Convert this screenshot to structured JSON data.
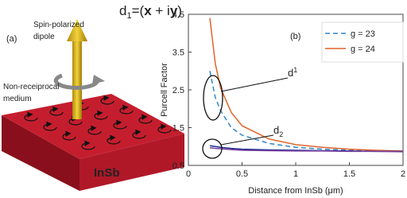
{
  "diagram": {
    "panel_label": "(a)",
    "dipole_formula": [
      "d",
      "1",
      "=(",
      "x",
      " + i",
      "y",
      ")"
    ],
    "dipole_label": [
      "Spin-polarized",
      "dipole"
    ],
    "medium_label": [
      "Non-receiprocal",
      "medium"
    ],
    "material": "InSb"
  },
  "chart_data": {
    "type": "line",
    "panel_label": "(b)",
    "xlabel": "Distance from InSb (μm)",
    "ylabel": "Purcell Factor",
    "x": [
      0.2,
      0.25,
      0.3,
      0.4,
      0.5,
      0.75,
      1,
      1.25,
      1.5,
      1.75,
      2
    ],
    "series": [
      {
        "name": "g = 23",
        "color": "#2f86c9",
        "dashed": true,
        "values": [
          3.0,
          2.3,
          1.95,
          1.5,
          1.3,
          1.08,
          0.98,
          0.93,
          0.9,
          0.88,
          0.87
        ]
      },
      {
        "name": "g = 24",
        "color": "#e0642a",
        "values": [
          4.4,
          3.2,
          2.55,
          1.9,
          1.55,
          1.2,
          1.05,
          0.98,
          0.93,
          0.9,
          0.88
        ]
      },
      {
        "color": "#1f2a8c",
        "values": [
          1.02,
          1.0,
          0.98,
          0.95,
          0.93,
          0.91,
          0.9,
          0.89,
          0.88,
          0.87,
          0.87
        ]
      },
      {
        "color": "#7a3fa0",
        "values": [
          0.97,
          0.95,
          0.94,
          0.92,
          0.9,
          0.89,
          0.88,
          0.88,
          0.87,
          0.87,
          0.86
        ]
      }
    ],
    "annotations": [
      {
        "text": "d",
        "sub": "1"
      },
      {
        "text": "d",
        "sub": "2"
      }
    ],
    "xlim": [
      0,
      2
    ],
    "xticks": [
      0,
      0.5,
      1,
      1.5,
      2
    ],
    "ylim": [
      0.5,
      4.5
    ],
    "yticks": [
      0.5,
      1.5,
      2.5,
      3.5,
      4.5
    ],
    "legend": "top-right"
  }
}
